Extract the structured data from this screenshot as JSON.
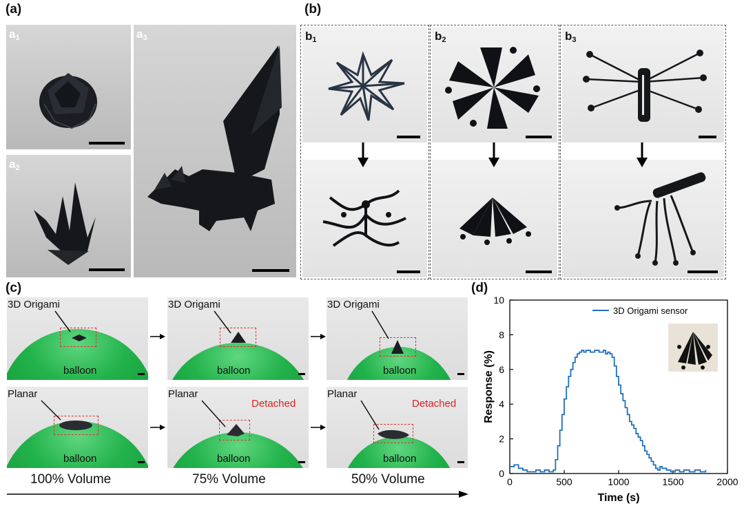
{
  "panel_a": {
    "label": "(a)",
    "subs": [
      {
        "letter": "a",
        "num": "1"
      },
      {
        "letter": "a",
        "num": "2"
      },
      {
        "letter": "a",
        "num": "3"
      }
    ]
  },
  "panel_b": {
    "label": "(b)",
    "subs": [
      {
        "letter": "b",
        "num": "1"
      },
      {
        "letter": "b",
        "num": "2"
      },
      {
        "letter": "b",
        "num": "3"
      }
    ]
  },
  "panel_c": {
    "label": "(c)",
    "origami_label": "3D Origami",
    "planar_label": "Planar",
    "balloon_label": "balloon",
    "detached_label": "Detached",
    "volumes": [
      "100% Volume",
      "75% Volume",
      "50% Volume"
    ]
  },
  "panel_d": {
    "label": "(d)"
  },
  "chart_data": {
    "type": "line",
    "title": "",
    "xlabel": "Time (s)",
    "ylabel": "Response (%)",
    "xlim": [
      0,
      2000
    ],
    "ylim": [
      0,
      10
    ],
    "xticks": [
      0,
      500,
      1000,
      1500,
      2000
    ],
    "yticks": [
      0,
      2,
      4,
      6,
      8,
      10
    ],
    "legend": "3D Origami sensor",
    "series_color": "#1f6fbf",
    "series": [
      {
        "name": "3D Origami sensor",
        "x": [
          0,
          40,
          80,
          120,
          160,
          200,
          240,
          280,
          320,
          360,
          400,
          420,
          440,
          460,
          480,
          500,
          520,
          540,
          560,
          580,
          600,
          620,
          640,
          660,
          680,
          700,
          740,
          780,
          820,
          860,
          880,
          900,
          920,
          940,
          960,
          980,
          1000,
          1020,
          1040,
          1060,
          1080,
          1100,
          1120,
          1140,
          1160,
          1180,
          1200,
          1220,
          1240,
          1260,
          1280,
          1300,
          1320,
          1340,
          1360,
          1380,
          1400,
          1440,
          1480,
          1520,
          1560,
          1600,
          1650,
          1700,
          1750,
          1800
        ],
        "y": [
          0.4,
          0.5,
          0.3,
          0.2,
          0.1,
          0.1,
          0.2,
          0.1,
          0.2,
          0.1,
          0.2,
          0.8,
          1.6,
          2.5,
          3.4,
          4.3,
          5.0,
          5.6,
          6.0,
          6.4,
          6.7,
          6.9,
          7.0,
          7.1,
          7.0,
          7.1,
          7.0,
          7.1,
          7.0,
          7.1,
          6.9,
          7.0,
          6.9,
          6.7,
          6.2,
          5.6,
          5.1,
          4.6,
          4.2,
          3.8,
          3.4,
          3.0,
          2.8,
          2.6,
          2.3,
          2.1,
          1.9,
          1.6,
          1.3,
          1.1,
          0.9,
          0.7,
          0.5,
          0.3,
          0.2,
          0.4,
          0.3,
          0.2,
          0.1,
          0.2,
          0.1,
          0.2,
          0.1,
          0.2,
          0.1,
          0.2
        ]
      }
    ]
  }
}
